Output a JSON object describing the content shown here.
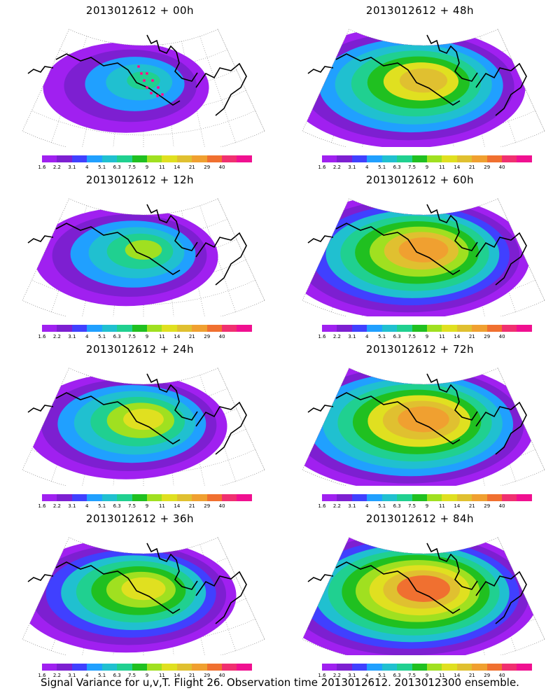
{
  "panels": [
    {
      "title": "2013012612  +  00h",
      "intensity": 0.25,
      "coverage": 0.45,
      "track": true
    },
    {
      "title": "2013012612  +  48h",
      "intensity": 0.65,
      "coverage": 0.85,
      "track": false
    },
    {
      "title": "2013012612  +  12h",
      "intensity": 0.4,
      "coverage": 0.55,
      "track": false
    },
    {
      "title": "2013012612  +  60h",
      "intensity": 0.75,
      "coverage": 0.9,
      "track": false
    },
    {
      "title": "2013012612  +  24h",
      "intensity": 0.55,
      "coverage": 0.65,
      "track": false
    },
    {
      "title": "2013012612  +  72h",
      "intensity": 0.8,
      "coverage": 0.95,
      "track": false
    },
    {
      "title": "2013012612  +  36h",
      "intensity": 0.6,
      "coverage": 0.75,
      "track": false
    },
    {
      "title": "2013012612  +  84h",
      "intensity": 0.85,
      "coverage": 1.0,
      "track": false
    }
  ],
  "colorbar": {
    "labels": [
      "1.6",
      "2.2",
      "3.1",
      "4",
      "5.1",
      "6.3",
      "7.5",
      "9",
      "11",
      "14",
      "21",
      "29",
      "40"
    ],
    "colors": [
      "#a020f0",
      "#7d1fd1",
      "#4040ff",
      "#20a0ff",
      "#20c0d0",
      "#20d090",
      "#20c020",
      "#a0e020",
      "#e0e020",
      "#e0c030",
      "#f0a030",
      "#f07030",
      "#f03070",
      "#f01090"
    ]
  },
  "footer": "Signal Variance for u,v,T. Flight 26. Observation time 2013012612. 2013012300 ensemble."
}
